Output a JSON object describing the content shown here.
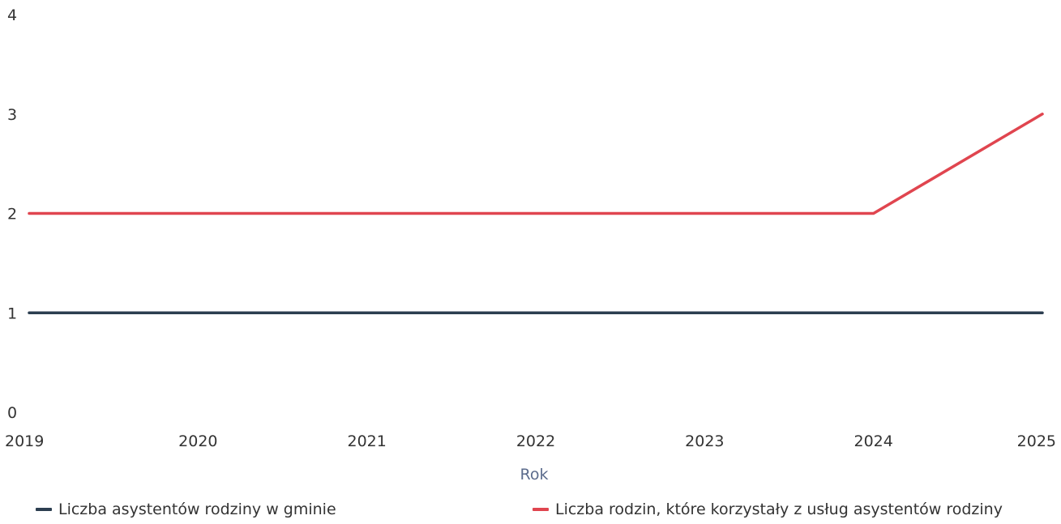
{
  "chart_data": {
    "type": "line",
    "x": [
      "2019",
      "2020",
      "2021",
      "2022",
      "2023",
      "2024",
      "2025"
    ],
    "series": [
      {
        "name": "Liczba asystentów rodziny w gminie",
        "color": "#2c3e50",
        "values": [
          1,
          1,
          1,
          1,
          1,
          1,
          1
        ]
      },
      {
        "name": "Liczba rodzin, które korzystały z usług asystentów rodziny",
        "color": "#e0454f",
        "values": [
          2,
          2,
          2,
          2,
          2,
          2,
          3
        ]
      }
    ],
    "xlabel": "Rok",
    "ylabel": "",
    "ylim": [
      0,
      4
    ],
    "yticks": [
      "0",
      "1",
      "2",
      "3",
      "4"
    ],
    "grid": false,
    "legend_position": "bottom"
  }
}
